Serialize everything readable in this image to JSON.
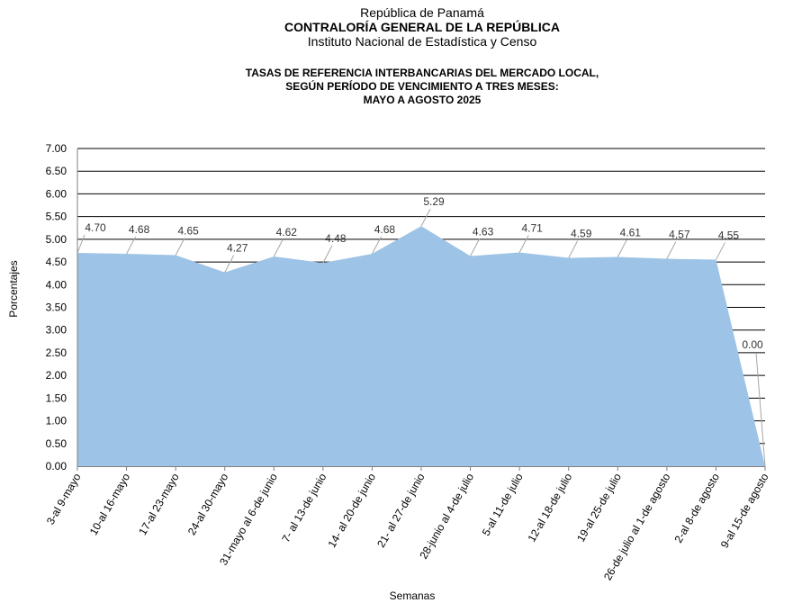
{
  "header": {
    "country": "República de Panamá",
    "institution": "CONTRALORÍA GENERAL DE LA REPÚBLICA",
    "institute": "Instituto Nacional de Estadística y Censo"
  },
  "chart_data": {
    "type": "area",
    "title_lines": [
      "TASAS DE REFERENCIA INTERBANCARIAS DEL MERCADO LOCAL,",
      "SEGÚN PERÍODO DE VENCIMIENTO A TRES MESES:",
      "MAYO A AGOSTO 2025"
    ],
    "xlabel": "Semanas",
    "ylabel": "Porcentajes",
    "ylim": [
      0,
      7
    ],
    "yticks": [
      "0.00",
      "0.50",
      "1.00",
      "1.50",
      "2.00",
      "2.50",
      "3.00",
      "3.50",
      "4.00",
      "4.50",
      "5.00",
      "5.50",
      "6.00",
      "6.50",
      "7.00"
    ],
    "grid": true,
    "categories": [
      "3-al 9-mayo",
      "10-al 16-mayo",
      "17-al 23-mayo",
      "24-al 30-mayo",
      "31-mayo al 6-de junio",
      "7- al 13-de junio",
      "14- al 20-de junio",
      "21- al 27-de junio",
      "28-junio al 4-de julio",
      "5-al 11-de julio",
      "12-al 18-de julio",
      "19-al 25-de julio",
      "26-de julio al 1-de agosto",
      "2-al 8-de agosto",
      "9-al 15-de agosto"
    ],
    "values": [
      4.7,
      4.68,
      4.65,
      4.27,
      4.62,
      4.48,
      4.68,
      5.29,
      4.63,
      4.71,
      4.59,
      4.61,
      4.57,
      4.55,
      0.0
    ],
    "labels": [
      "4.70",
      "4.68",
      "4.65",
      "4.27",
      "4.62",
      "4.48",
      "4.68",
      "5.29",
      "4.63",
      "4.71",
      "4.59",
      "4.61",
      "4.57",
      "4.55",
      "0.00"
    ],
    "colors": {
      "area": "#9dc3e6",
      "grid": "#000000",
      "leader": "#a6a6a6"
    }
  }
}
